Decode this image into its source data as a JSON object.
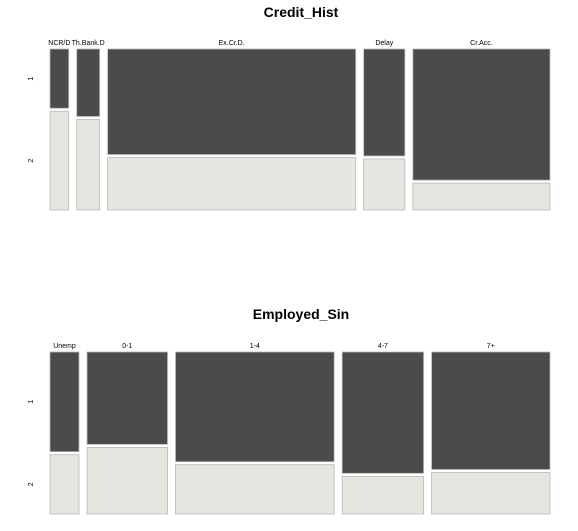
{
  "colors": {
    "level_1": "#4d4b49",
    "level_2": "#e6e5e0",
    "border": "#b9b9b9",
    "background": "#ffffff"
  },
  "chart_data": [
    {
      "type": "mosaic",
      "title": "Credit_Hist",
      "levels": [
        "1",
        "2"
      ],
      "categories": [
        "NCR/D",
        "Th.Bank.D",
        "Ex.Cr.D.",
        "Delay",
        "Cr.Acc."
      ],
      "category_share": [
        0.04,
        0.049,
        0.53,
        0.088,
        0.293
      ],
      "level_1_share": [
        0.375,
        0.427,
        0.668,
        0.677,
        0.83
      ],
      "level_2_share": [
        0.625,
        0.573,
        0.332,
        0.323,
        0.17
      ]
    },
    {
      "type": "mosaic",
      "title": "Employed_Sin",
      "levels": [
        "1",
        "2"
      ],
      "categories": [
        "Unemp",
        "0-1",
        "1-4",
        "4-7",
        "7+"
      ],
      "category_share": [
        0.062,
        0.172,
        0.339,
        0.174,
        0.253
      ],
      "level_1_share": [
        0.627,
        0.581,
        0.69,
        0.763,
        0.739
      ],
      "level_2_share": [
        0.373,
        0.419,
        0.31,
        0.237,
        0.261
      ]
    }
  ]
}
